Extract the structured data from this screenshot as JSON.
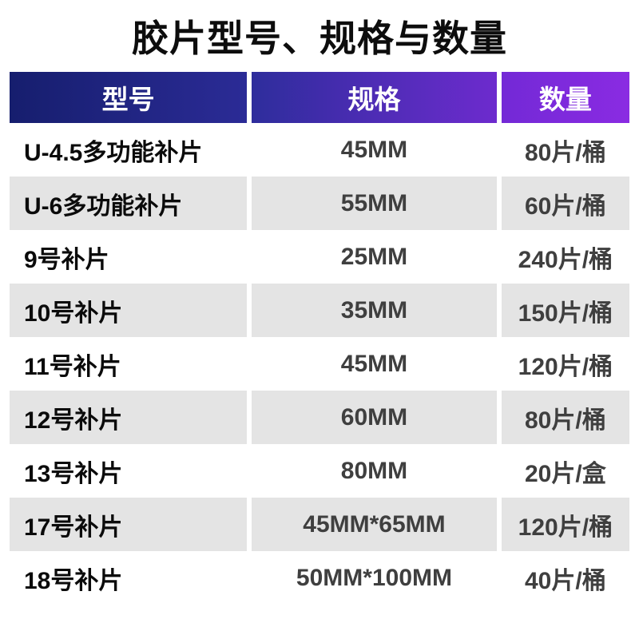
{
  "title": "胶片型号、规格与数量",
  "colors": {
    "header_gradient_left": "#161e6e",
    "header_gradient_mid": "#3c34ae",
    "header_gradient_right": "#8a2be2",
    "header_text": "#ffffff",
    "alt_row_background": "#e4e4e4",
    "row_background": "#ffffff",
    "model_text": "#0b0b0b",
    "body_text": "#3f3f3f"
  },
  "chart_data": {
    "type": "table",
    "title": "胶片型号、规格与数量",
    "columns": [
      "型号",
      "规格",
      "数量"
    ],
    "rows": [
      [
        "U-4.5多功能补片",
        "45MM",
        "80片/桶"
      ],
      [
        "U-6多功能补片",
        "55MM",
        "60片/桶"
      ],
      [
        "9号补片",
        "25MM",
        "240片/桶"
      ],
      [
        "10号补片",
        "35MM",
        "150片/桶"
      ],
      [
        "11号补片",
        "45MM",
        "120片/桶"
      ],
      [
        "12号补片",
        "60MM",
        "80片/桶"
      ],
      [
        "13号补片",
        "80MM",
        "20片/盒"
      ],
      [
        "17号补片",
        "45MM*65MM",
        "120片/桶"
      ],
      [
        "18号补片",
        "50MM*100MM",
        "40片/桶"
      ]
    ]
  }
}
